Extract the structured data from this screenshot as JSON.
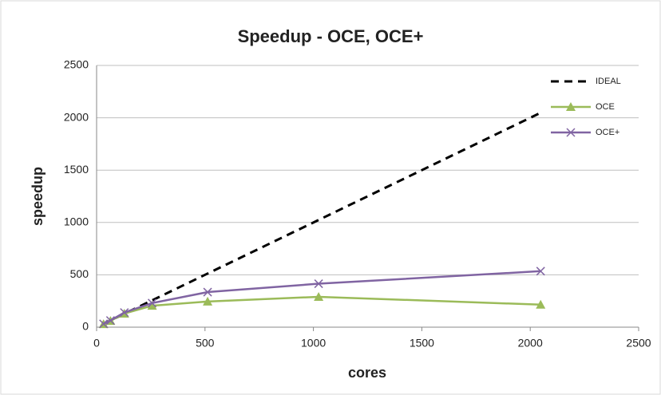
{
  "chart_data": {
    "type": "line",
    "title": "Speedup - OCE, OCE+",
    "xlabel": "cores",
    "ylabel": "speedup",
    "xlim": [
      0,
      2500
    ],
    "xticks": [
      0,
      500,
      1000,
      1500,
      2000,
      2500
    ],
    "ylim": [
      0,
      2500
    ],
    "yticks": [
      0,
      500,
      1000,
      1500,
      2000,
      2500
    ],
    "grid": true,
    "legend": "top-right",
    "series": [
      {
        "name": "IDEAL",
        "color": "#000000",
        "dash": true,
        "marker": null,
        "x": [
          32,
          64,
          128,
          256,
          512,
          1024,
          2048
        ],
        "values": [
          32,
          64,
          128,
          256,
          512,
          1024,
          2048
        ]
      },
      {
        "name": "OCE",
        "color": "#9bbb59",
        "dash": false,
        "marker": "triangle",
        "x": [
          32,
          64,
          128,
          256,
          512,
          1024,
          2048
        ],
        "values": [
          30,
          60,
          130,
          205,
          245,
          290,
          215
        ]
      },
      {
        "name": "OCE+",
        "color": "#8064a2",
        "dash": false,
        "marker": "x",
        "x": [
          32,
          64,
          128,
          256,
          512,
          1024,
          2048
        ],
        "values": [
          32,
          64,
          140,
          230,
          335,
          415,
          535
        ]
      }
    ]
  }
}
